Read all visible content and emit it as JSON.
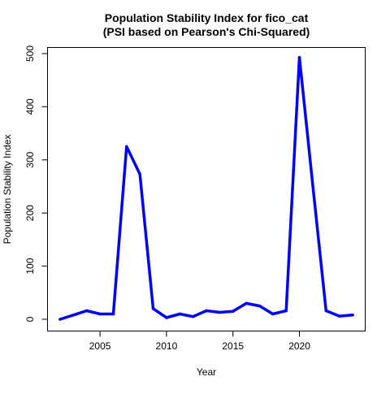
{
  "chart_data": {
    "type": "line",
    "title": "Population Stability Index for fico_cat",
    "subtitle": "(PSI based on Pearson's Chi-Squared)",
    "xlabel": "Year",
    "ylabel": "Population Stability Index",
    "xlim": [
      2002,
      2024
    ],
    "ylim": [
      0,
      500
    ],
    "xticks": [
      2005,
      2010,
      2015,
      2020
    ],
    "yticks": [
      0,
      100,
      200,
      300,
      400,
      500
    ],
    "grid": false,
    "legend": "none",
    "series": [
      {
        "color": "#0000ff",
        "x": [
          2002,
          2003,
          2004,
          2005,
          2006,
          2007,
          2008,
          2009,
          2010,
          2011,
          2012,
          2013,
          2014,
          2015,
          2016,
          2017,
          2018,
          2019,
          2020,
          2021,
          2022,
          2023,
          2024
        ],
        "values": [
          0,
          8,
          16,
          10,
          10,
          325,
          273,
          20,
          3,
          10,
          5,
          16,
          13,
          15,
          30,
          25,
          10,
          16,
          493,
          253,
          16,
          6,
          8
        ]
      }
    ]
  }
}
